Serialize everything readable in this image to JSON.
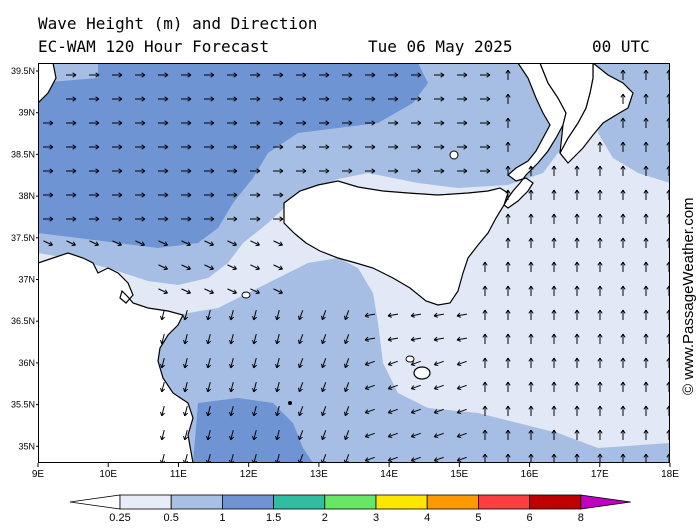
{
  "header": {
    "title": "Wave Height (m) and Direction",
    "model": "EC-WAM 120 Hour Forecast",
    "date": "Tue 06 May 2025",
    "time": "00 UTC"
  },
  "credit": "© www.PassageWeather.com",
  "axes": {
    "lon_labels": [
      "9E",
      "10E",
      "11E",
      "12E",
      "13E",
      "14E",
      "15E",
      "16E",
      "17E",
      "18E"
    ],
    "lat_labels": [
      "39.5N",
      "39N",
      "38.5N",
      "38N",
      "37.5N",
      "37N",
      "36.5N",
      "36N",
      "35.5N",
      "35N"
    ]
  },
  "legend": {
    "labels": [
      "0.25",
      "0.5",
      "1",
      "1.5",
      "2",
      "3",
      "4",
      "5",
      "6",
      "8"
    ],
    "colors": [
      "#e8ecf8",
      "#a8c0e4",
      "#6f94d4",
      "#2fbfa0",
      "#66e866",
      "#ffe600",
      "#ff9900",
      "#ff3f3f",
      "#c00000",
      "#c000c0"
    ]
  },
  "colors": {
    "land": "#ffffff",
    "low": "#e2e8f6",
    "mid": "#a6bee4",
    "high": "#6f94d4"
  }
}
